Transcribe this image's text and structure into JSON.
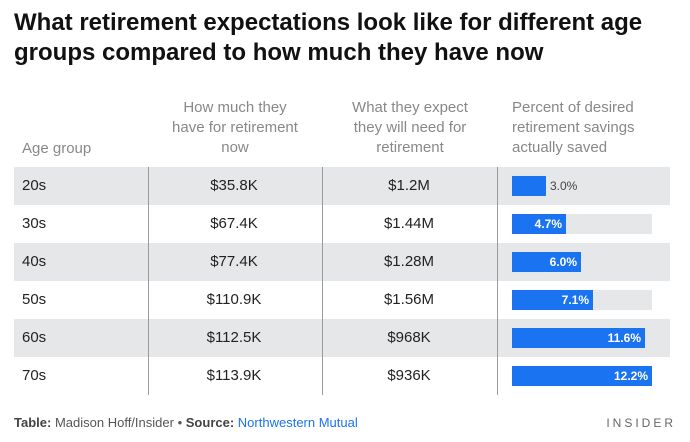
{
  "title": "What retirement expectations look like for different age groups compared to how much they have now",
  "headers": {
    "age": "Age group",
    "have": [
      "How much they",
      "have for retirement",
      "now"
    ],
    "need": [
      "What they expect",
      "they will need for",
      "retirement"
    ],
    "pct": [
      "Percent of desired",
      "retirement savings",
      "actually saved"
    ]
  },
  "chart_data": {
    "type": "table",
    "columns": [
      "Age group",
      "How much they have for retirement now",
      "What they expect they will need for retirement",
      "Percent of desired retirement savings actually saved"
    ],
    "rows": [
      {
        "age": "20s",
        "have": "$35.8K",
        "need": "$1.2M",
        "pct": 3.0,
        "pct_label": "3.0%"
      },
      {
        "age": "30s",
        "have": "$67.4K",
        "need": "$1.44M",
        "pct": 4.7,
        "pct_label": "4.7%"
      },
      {
        "age": "40s",
        "have": "$77.4K",
        "need": "$1.28M",
        "pct": 6.0,
        "pct_label": "6.0%"
      },
      {
        "age": "50s",
        "have": "$110.9K",
        "need": "$1.56M",
        "pct": 7.1,
        "pct_label": "7.1%"
      },
      {
        "age": "60s",
        "have": "$112.5K",
        "need": "$968K",
        "pct": 11.6,
        "pct_label": "11.6%"
      },
      {
        "age": "70s",
        "have": "$113.9K",
        "need": "$936K",
        "pct": 12.2,
        "pct_label": "12.2%"
      }
    ],
    "pct_max": 12.2,
    "bar_color": "#1a73f0"
  },
  "footer": {
    "table_prefix": "Table:",
    "table_credit": "Madison Hoff/Insider",
    "bullet": "•",
    "source_prefix": "Source:",
    "source": "Northwestern Mutual"
  },
  "brand": "INSIDER"
}
